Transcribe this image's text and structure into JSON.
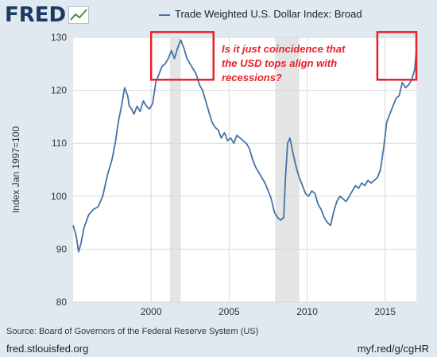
{
  "brand": {
    "name": "FRED",
    "icon": "fred-line-chart-icon"
  },
  "source": "Source: Board of Governors of the Federal Reserve System (US)",
  "footer": {
    "left": "fred.stlouisfed.org",
    "right": "myf.red/g/cgHR"
  },
  "annotation": {
    "text": [
      "Is it just coincidence that",
      "the USD tops align with",
      "recessions?"
    ],
    "color": "#e8202a"
  },
  "chart_data": {
    "type": "line",
    "title": "",
    "xlabel": "",
    "ylabel": "Index Jan 1997=100",
    "xlim": [
      1995,
      2017
    ],
    "ylim": [
      80,
      130
    ],
    "xticks": [
      2000,
      2005,
      2010,
      2015
    ],
    "yticks": [
      80,
      90,
      100,
      110,
      120,
      130
    ],
    "grid": true,
    "legend": "top",
    "recessions": [
      [
        2001.2,
        2001.9
      ],
      [
        2007.95,
        2009.5
      ]
    ],
    "highlight_boxes": [
      [
        2000.0,
        2004.0,
        122.0,
        131.0
      ],
      [
        2014.5,
        2017.0,
        122.0,
        131.0
      ]
    ],
    "series": [
      {
        "name": "Trade Weighted U.S. Dollar Index: Broad",
        "color": "#4572a7",
        "x": [
          1995.0,
          1995.2,
          1995.35,
          1995.5,
          1995.7,
          1996.0,
          1996.3,
          1996.6,
          1996.9,
          1997.2,
          1997.5,
          1997.7,
          1997.9,
          1998.1,
          1998.3,
          1998.5,
          1998.6,
          1998.75,
          1998.9,
          1999.1,
          1999.3,
          1999.5,
          1999.7,
          1999.9,
          2000.1,
          2000.3,
          2000.5,
          2000.7,
          2000.9,
          2001.1,
          2001.3,
          2001.5,
          2001.7,
          2001.9,
          2002.1,
          2002.3,
          2002.5,
          2002.7,
          2002.9,
          2003.1,
          2003.3,
          2003.5,
          2003.7,
          2003.9,
          2004.1,
          2004.3,
          2004.5,
          2004.7,
          2004.9,
          2005.1,
          2005.3,
          2005.5,
          2005.7,
          2005.9,
          2006.1,
          2006.3,
          2006.5,
          2006.7,
          2006.9,
          2007.1,
          2007.3,
          2007.5,
          2007.7,
          2007.9,
          2008.1,
          2008.3,
          2008.5,
          2008.6,
          2008.75,
          2008.9,
          2009.1,
          2009.3,
          2009.5,
          2009.7,
          2009.9,
          2010.1,
          2010.3,
          2010.5,
          2010.7,
          2010.9,
          2011.1,
          2011.3,
          2011.5,
          2011.7,
          2011.9,
          2012.1,
          2012.3,
          2012.5,
          2012.7,
          2012.9,
          2013.1,
          2013.3,
          2013.5,
          2013.7,
          2013.9,
          2014.1,
          2014.3,
          2014.5,
          2014.7,
          2014.9,
          2015.1,
          2015.3,
          2015.5,
          2015.7,
          2015.9,
          2016.1,
          2016.3,
          2016.5,
          2016.7,
          2016.9,
          2017.0
        ],
        "values": [
          94.5,
          92.5,
          89.5,
          91.0,
          94.0,
          96.5,
          97.5,
          98.0,
          100.0,
          104.0,
          107.0,
          110.0,
          114.0,
          117.0,
          120.5,
          119.0,
          117.0,
          116.5,
          115.5,
          117.0,
          116.0,
          118.0,
          117.0,
          116.5,
          117.5,
          121.5,
          123.0,
          124.5,
          125.0,
          126.0,
          127.5,
          126.0,
          128.0,
          129.5,
          128.0,
          126.0,
          125.0,
          124.0,
          123.0,
          121.0,
          120.0,
          118.0,
          116.0,
          114.0,
          113.0,
          112.5,
          111.0,
          112.0,
          110.5,
          111.0,
          110.0,
          111.5,
          111.0,
          110.5,
          110.0,
          109.0,
          107.0,
          105.5,
          104.5,
          103.5,
          102.5,
          101.0,
          99.5,
          97.0,
          96.0,
          95.5,
          96.0,
          103.0,
          110.0,
          111.0,
          108.0,
          105.5,
          103.5,
          102.0,
          100.5,
          100.0,
          101.0,
          100.5,
          98.5,
          97.5,
          96.0,
          95.0,
          94.5,
          97.0,
          99.0,
          100.0,
          99.5,
          99.0,
          100.0,
          101.0,
          102.0,
          101.5,
          102.5,
          102.0,
          103.0,
          102.5,
          103.0,
          103.5,
          105.0,
          109.0,
          114.0,
          115.5,
          117.0,
          118.5,
          119.0,
          121.5,
          120.5,
          121.0,
          122.0,
          124.0,
          127.5
        ]
      }
    ]
  }
}
